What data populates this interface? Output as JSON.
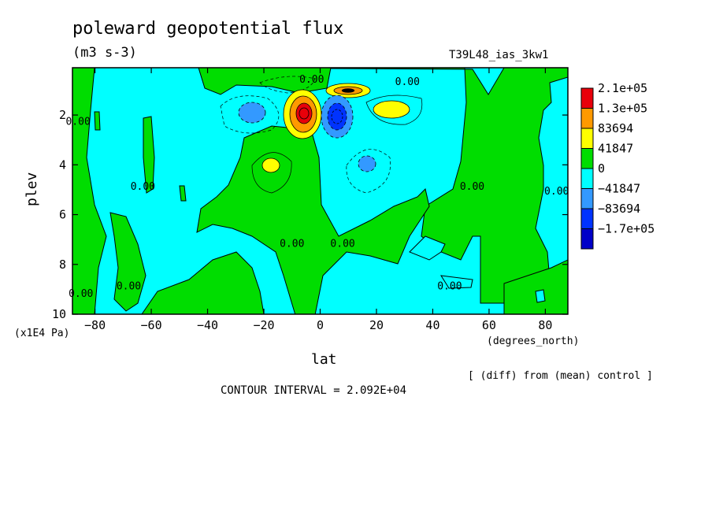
{
  "chart_data": {
    "type": "heatmap",
    "title": "poleward geopotential flux",
    "units": "(m3 s-3)",
    "run_label": "T39L48_ias_3kw1",
    "note": "[ (diff) from (mean) control ]",
    "contour_interval_label": "CONTOUR INTERVAL = 2.092E+04",
    "xlabel": "lat",
    "x_units": "(degrees_north)",
    "ylabel": "plev",
    "y_units": "(x1E4 Pa)",
    "xlim": [
      -88,
      88
    ],
    "ylim": [
      10,
      0.1
    ],
    "x_ticks": [
      -80,
      -60,
      -40,
      -20,
      0,
      20,
      40,
      60,
      80
    ],
    "y_ticks": [
      2,
      4,
      6,
      8,
      10
    ],
    "colorbar": {
      "labels": [
        "2.1e+05",
        "1.3e+05",
        "83694",
        "41847",
        "0",
        "−41847",
        "−83694",
        "−1.7e+05"
      ],
      "colors": [
        "#e8000a",
        "#ff9900",
        "#ffff00",
        "#00dd00",
        "#00ffff",
        "#3399ff",
        "#0033ff",
        "#0000c8"
      ]
    },
    "contour_labels": [
      {
        "text": "0.00",
        "lat": -86,
        "plev": 2.4
      },
      {
        "text": "0.00",
        "lat": -63,
        "plev": 5.0
      },
      {
        "text": "0.00",
        "lat": -68,
        "plev": 9.0
      },
      {
        "text": "0.00",
        "lat": -85,
        "plev": 9.3
      },
      {
        "text": "0.00",
        "lat": -10,
        "plev": 7.3
      },
      {
        "text": "0.00",
        "lat": 8,
        "plev": 7.3
      },
      {
        "text": "0.00",
        "lat": 31,
        "plev": 0.8
      },
      {
        "text": "0.00",
        "lat": -3,
        "plev": 0.7
      },
      {
        "text": "0.00",
        "lat": 54,
        "plev": 5.0
      },
      {
        "text": "0.00",
        "lat": 84,
        "plev": 5.2
      },
      {
        "text": "0.00",
        "lat": 46,
        "plev": 9.0
      }
    ],
    "anomalies": [
      {
        "lat": -6,
        "plev": 2.0,
        "value": 210000
      },
      {
        "lat": 6,
        "plev": 2.0,
        "value": -170000
      },
      {
        "lat": 13,
        "plev": 0.9,
        "value": 83694
      },
      {
        "lat": 23,
        "plev": 1.8,
        "value": 41847
      },
      {
        "lat": -25,
        "plev": 1.8,
        "value": -41847
      },
      {
        "lat": -19,
        "plev": 3.9,
        "value": 41847
      },
      {
        "lat": 19,
        "plev": 3.9,
        "value": -41847
      }
    ]
  }
}
